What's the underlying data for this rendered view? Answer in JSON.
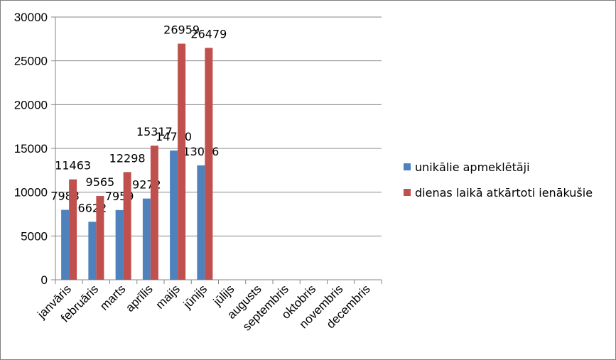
{
  "chart_data": {
    "type": "bar",
    "title": "",
    "xlabel": "",
    "ylabel": "",
    "ylim": [
      0,
      30000
    ],
    "yticks": [
      0,
      5000,
      10000,
      15000,
      20000,
      25000,
      30000
    ],
    "grid": true,
    "legend_position": "right",
    "categories": [
      "janvāris",
      "februāris",
      "marts",
      "aprīlis",
      "maijs",
      "jūnijs",
      "jūlijs",
      "augusts",
      "septembris",
      "oktobris",
      "novembris",
      "decembris"
    ],
    "series": [
      {
        "name": "unikālie apmeklētāji",
        "color": "#4f81bd",
        "values": [
          7983,
          6622,
          7959,
          9272,
          14760,
          13066,
          null,
          null,
          null,
          null,
          null,
          null
        ]
      },
      {
        "name": "dienas laikā atkārtoti ienākušie",
        "color": "#c0504d",
        "values": [
          11463,
          9565,
          12298,
          15317,
          26959,
          26479,
          null,
          null,
          null,
          null,
          null,
          null
        ]
      }
    ]
  }
}
